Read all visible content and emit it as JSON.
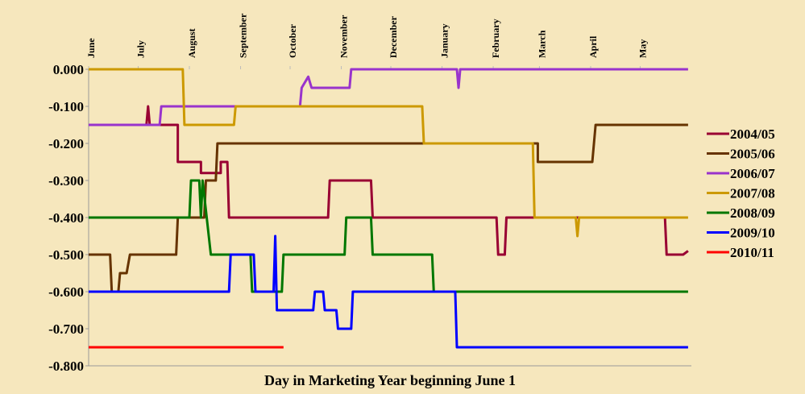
{
  "chart_data": {
    "type": "line",
    "xlabel": "Day in Marketing Year beginning June 1",
    "xlim": [
      0,
      365
    ],
    "xticks": [
      {
        "value": 0,
        "label": "June"
      },
      {
        "value": 30,
        "label": "July"
      },
      {
        "value": 61,
        "label": "August"
      },
      {
        "value": 92,
        "label": "September"
      },
      {
        "value": 122,
        "label": "October"
      },
      {
        "value": 153,
        "label": "November"
      },
      {
        "value": 183,
        "label": "December"
      },
      {
        "value": 214,
        "label": "January"
      },
      {
        "value": 245,
        "label": "February"
      },
      {
        "value": 273,
        "label": "March"
      },
      {
        "value": 304,
        "label": "April"
      },
      {
        "value": 334,
        "label": "May"
      }
    ],
    "ylim": [
      -0.8,
      0
    ],
    "yticks": [
      {
        "value": 0,
        "label": "0.000"
      },
      {
        "value": -0.1,
        "label": "-0.100"
      },
      {
        "value": -0.2,
        "label": "-0.200"
      },
      {
        "value": -0.3,
        "label": "-0.300"
      },
      {
        "value": -0.4,
        "label": "-0.400"
      },
      {
        "value": -0.5,
        "label": "-0.500"
      },
      {
        "value": -0.6,
        "label": "-0.600"
      },
      {
        "value": -0.7,
        "label": "-0.700"
      },
      {
        "value": -0.8,
        "label": "-0.800"
      }
    ],
    "legend": "right",
    "series": [
      {
        "name": "2004/05",
        "color": "#990033",
        "x": [
          0,
          35,
          36,
          37,
          54,
          54,
          68,
          68,
          80,
          80,
          84,
          85,
          145,
          146,
          171,
          172,
          247,
          248,
          252,
          253,
          349,
          350,
          360,
          363
        ],
        "values": [
          -0.15,
          -0.15,
          -0.1,
          -0.15,
          -0.15,
          -0.25,
          -0.25,
          -0.28,
          -0.28,
          -0.25,
          -0.25,
          -0.4,
          -0.4,
          -0.3,
          -0.3,
          -0.4,
          -0.4,
          -0.5,
          -0.5,
          -0.4,
          -0.4,
          -0.5,
          -0.5,
          -0.49
        ]
      },
      {
        "name": "2005/06",
        "color": "#663300",
        "x": [
          0,
          13,
          14,
          18,
          19,
          23,
          25,
          53,
          54,
          70,
          71,
          77,
          78,
          272,
          272,
          305,
          307,
          363
        ],
        "values": [
          -0.5,
          -0.5,
          -0.6,
          -0.6,
          -0.55,
          -0.55,
          -0.5,
          -0.5,
          -0.4,
          -0.4,
          -0.3,
          -0.3,
          -0.2,
          -0.2,
          -0.25,
          -0.25,
          -0.15,
          -0.15
        ]
      },
      {
        "name": "2006/07",
        "color": "#9933cc",
        "x": [
          0,
          43,
          44,
          128,
          129,
          133,
          135,
          158,
          159,
          223,
          224,
          225,
          363
        ],
        "values": [
          -0.15,
          -0.15,
          -0.1,
          -0.1,
          -0.05,
          -0.02,
          -0.05,
          -0.05,
          0,
          0,
          -0.05,
          0,
          0
        ]
      },
      {
        "name": "2007/08",
        "color": "#cc9900",
        "x": [
          0,
          57,
          58,
          88,
          89,
          202,
          203,
          269,
          270,
          295,
          296,
          297,
          363
        ],
        "values": [
          0,
          0,
          -0.15,
          -0.15,
          -0.1,
          -0.1,
          -0.2,
          -0.2,
          -0.4,
          -0.4,
          -0.45,
          -0.4,
          -0.4
        ]
      },
      {
        "name": "2008/09",
        "color": "#007700",
        "x": [
          0,
          61,
          62,
          67,
          68,
          69,
          74,
          98,
          99,
          117,
          118,
          155,
          156,
          171,
          172,
          208,
          209,
          363
        ],
        "values": [
          -0.4,
          -0.4,
          -0.3,
          -0.3,
          -0.4,
          -0.3,
          -0.5,
          -0.5,
          -0.6,
          -0.6,
          -0.5,
          -0.5,
          -0.4,
          -0.4,
          -0.5,
          -0.5,
          -0.6,
          -0.6
        ]
      },
      {
        "name": "2009/10",
        "color": "#0000ff",
        "x": [
          0,
          85,
          86,
          100,
          101,
          112,
          113,
          114,
          136,
          137,
          142,
          143,
          150,
          151,
          159,
          160,
          222,
          223,
          363
        ],
        "values": [
          -0.6,
          -0.6,
          -0.5,
          -0.5,
          -0.6,
          -0.6,
          -0.45,
          -0.65,
          -0.65,
          -0.6,
          -0.6,
          -0.65,
          -0.65,
          -0.7,
          -0.7,
          -0.6,
          -0.6,
          -0.75,
          -0.75
        ]
      },
      {
        "name": "2010/11",
        "color": "#ff0000",
        "x": [
          0,
          118
        ],
        "values": [
          -0.75,
          -0.75
        ]
      }
    ]
  }
}
